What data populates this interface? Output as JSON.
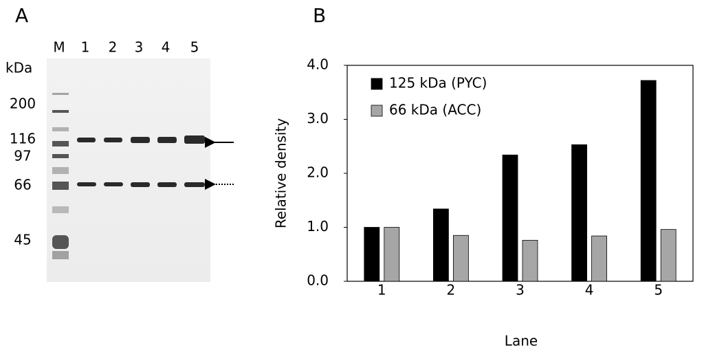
{
  "panel_a": {
    "label": "A",
    "lanes": [
      "M",
      "1",
      "2",
      "3",
      "4",
      "5"
    ],
    "unit": "kDa",
    "markers": [
      "200",
      "116",
      "97",
      "66",
      "45"
    ]
  },
  "chart_data": {
    "type": "bar",
    "label": "B",
    "x_label": "Lane",
    "y_label": "Relative density",
    "categories": [
      "1",
      "2",
      "3",
      "4",
      "5"
    ],
    "series": [
      {
        "name": "125 kDa (PYC)",
        "color": "#000000",
        "values": [
          1.0,
          1.34,
          2.34,
          2.53,
          3.72
        ]
      },
      {
        "name": "66 kDa (ACC)",
        "color": "#a6a6a6",
        "values": [
          1.0,
          0.85,
          0.76,
          0.84,
          0.96
        ]
      }
    ],
    "ylim": [
      0,
      4
    ],
    "yticks": [
      {
        "value": 0,
        "label": "0.0"
      },
      {
        "value": 1,
        "label": "1.0"
      },
      {
        "value": 2,
        "label": "2.0"
      },
      {
        "value": 3,
        "label": "3.0"
      },
      {
        "value": 4,
        "label": "4.0"
      }
    ],
    "legend": "top-left",
    "grid": false
  }
}
